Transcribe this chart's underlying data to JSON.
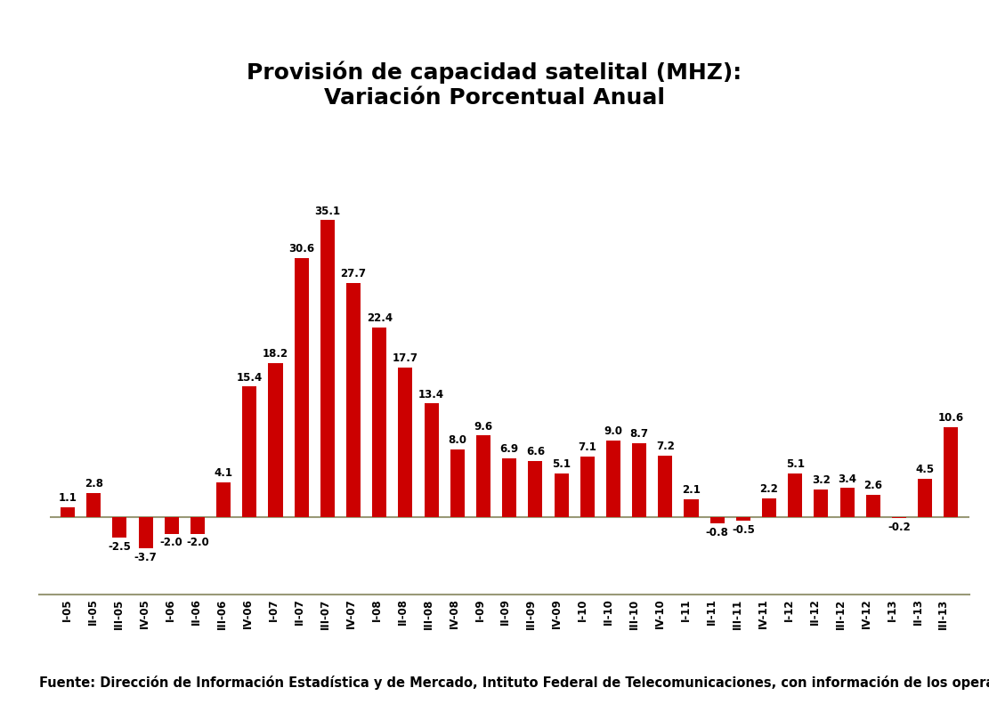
{
  "title": "Provisión de capacidad satelital (MHZ):\nVariación Porcentual Anual",
  "categories": [
    "I-05",
    "II-05",
    "III-05",
    "IV-05",
    "I-06",
    "II-06",
    "III-06",
    "IV-06",
    "I-07",
    "II-07",
    "III-07",
    "IV-07",
    "I-08",
    "II-08",
    "III-08",
    "IV-08",
    "I-09",
    "II-09",
    "III-09",
    "IV-09",
    "I-10",
    "II-10",
    "III-10",
    "IV-10",
    "I-11",
    "II-11",
    "III-11",
    "IV-11",
    "I-12",
    "II-12",
    "III-12",
    "IV-12",
    "I-13",
    "II-13",
    "III-13"
  ],
  "values": [
    1.1,
    2.8,
    -2.5,
    -3.7,
    -2.0,
    -2.0,
    4.1,
    15.4,
    18.2,
    30.6,
    35.1,
    27.7,
    22.4,
    17.7,
    13.4,
    8.0,
    9.6,
    6.9,
    6.6,
    5.1,
    7.1,
    9.0,
    8.7,
    7.2,
    2.1,
    -0.8,
    -0.5,
    2.2,
    5.1,
    3.2,
    3.4,
    2.6,
    -0.2,
    4.5,
    10.6
  ],
  "bar_color": "#cc0000",
  "title_fontsize": 18,
  "label_fontsize": 8.5,
  "value_fontsize": 8.5,
  "footer": "Fuente: Dirección de Información Estadística y de Mercado, Intituto Federal de Telecomunicaciones, con información de los operadores.",
  "footer_fontsize": 10.5,
  "background_color": "#ffffff",
  "ylim_min": -8,
  "ylim_max": 42
}
